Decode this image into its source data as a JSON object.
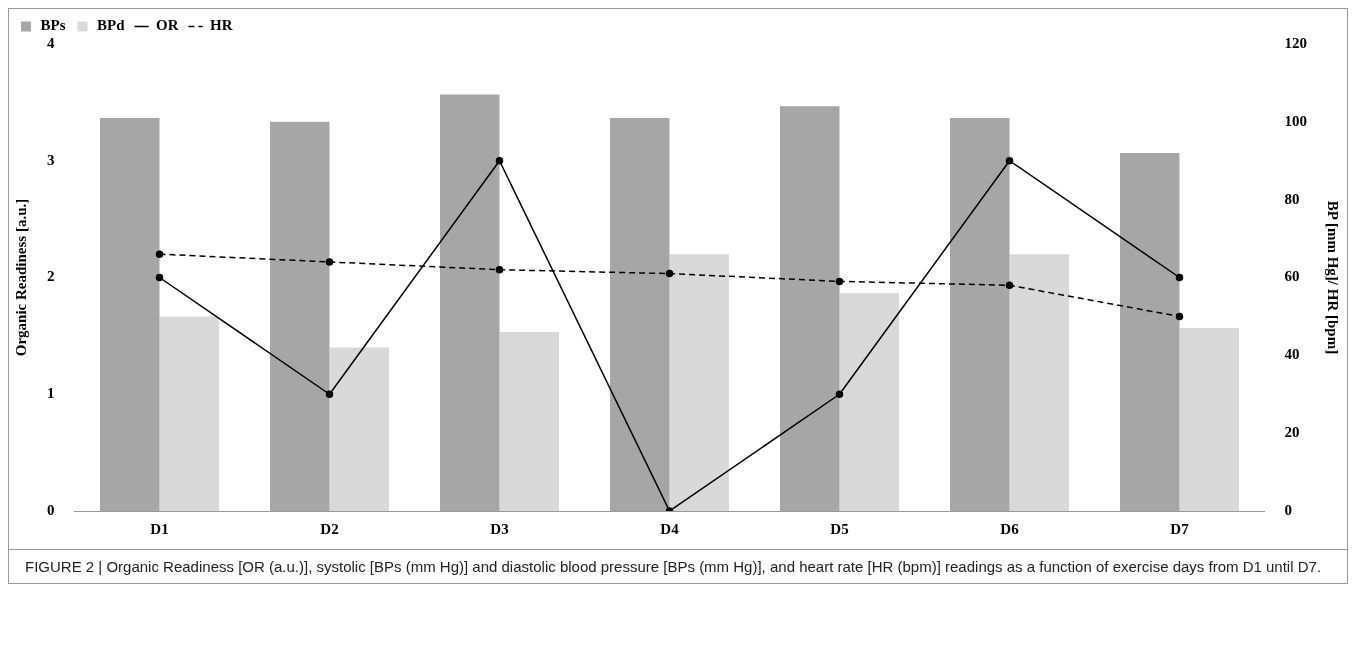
{
  "chart_data": {
    "type": "bar",
    "categories": [
      "D1",
      "D2",
      "D3",
      "D4",
      "D5",
      "D6",
      "D7"
    ],
    "ylabel": "Organic Readiness [a.u.]",
    "y2label": "BP [mm Hg]/ HR [bpm]",
    "ylim": [
      0,
      4
    ],
    "yticks": [
      0,
      1,
      2,
      3,
      4
    ],
    "y2lim": [
      0,
      120
    ],
    "y2ticks": [
      0,
      20,
      40,
      60,
      80,
      100,
      120
    ],
    "grid": false,
    "legend": "top left",
    "marker": "circle",
    "series": [
      {
        "name": "BPs",
        "axis": "y2",
        "color": "#a6a6a6",
        "values": [
          101,
          100,
          107,
          101,
          104,
          101,
          92
        ]
      },
      {
        "name": "BPd",
        "axis": "y2",
        "color": "#d9d9d9",
        "values": [
          50,
          42,
          46,
          66,
          56,
          66,
          47
        ]
      },
      {
        "name": "OR",
        "type": "line",
        "axis": "y",
        "color": "#000000",
        "line_style": "solid",
        "values": [
          2,
          1,
          3,
          0,
          1,
          3,
          2
        ]
      },
      {
        "name": "HR",
        "type": "line",
        "axis": "y2",
        "color": "#000000",
        "line_style": "dashed",
        "values": [
          66,
          64,
          62,
          61,
          59,
          58,
          50
        ]
      }
    ],
    "annotations": [
      "FIGURE 2 | Organic Readiness [OR (a.u.)], systolic [BPs (mm Hg)] and diastolic blood pressure [BPs (mm Hg)], and heart rate [HR (bpm)] readings as a function of exercise days from D1 until D7."
    ]
  }
}
